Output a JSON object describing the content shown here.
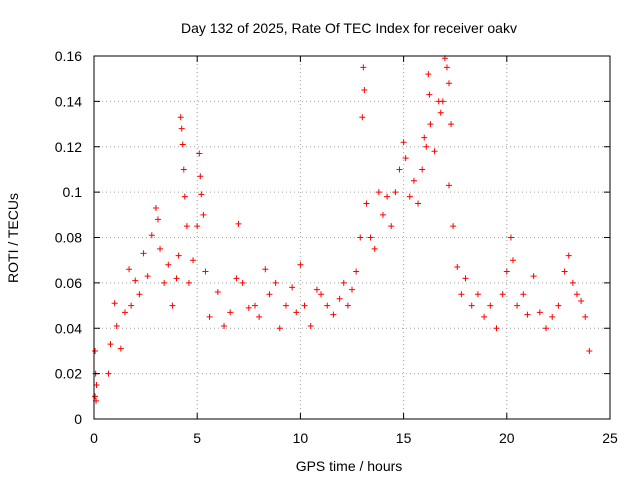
{
  "chart_data": {
    "type": "scatter",
    "title": "Day 132 of 2025, Rate Of TEC Index for receiver oakv",
    "xlabel": "GPS time / hours",
    "ylabel": "ROTI / TECUs",
    "xlim": [
      0,
      25
    ],
    "ylim": [
      0,
      0.16
    ],
    "x_ticks": [
      "0",
      "5",
      "10",
      "15",
      "20",
      "25"
    ],
    "y_ticks": [
      "0",
      "0.02",
      "0.04",
      "0.06",
      "0.08",
      "0.1",
      "0.12",
      "0.14",
      "0.16"
    ],
    "x_tick_values": [
      0,
      5,
      10,
      15,
      20,
      25
    ],
    "y_tick_values": [
      0,
      0.02,
      0.04,
      0.06,
      0.08,
      0.1,
      0.12,
      0.14,
      0.16
    ],
    "grid": true,
    "marker": "+",
    "color": "#ff0000",
    "series": [
      {
        "points": [
          [
            0.05,
            0.01
          ],
          [
            0.05,
            0.03
          ],
          [
            0.08,
            0.02
          ],
          [
            0.1,
            0.008
          ],
          [
            0.12,
            0.015
          ],
          [
            0.7,
            0.02
          ],
          [
            0.8,
            0.033
          ],
          [
            1.0,
            0.051
          ],
          [
            1.1,
            0.041
          ],
          [
            1.3,
            0.031
          ],
          [
            1.5,
            0.047
          ],
          [
            1.7,
            0.066
          ],
          [
            1.8,
            0.05
          ],
          [
            2.0,
            0.061
          ],
          [
            2.2,
            0.055
          ],
          [
            2.4,
            0.073
          ],
          [
            2.6,
            0.063
          ],
          [
            2.8,
            0.081
          ],
          [
            3.0,
            0.093
          ],
          [
            3.1,
            0.088
          ],
          [
            3.2,
            0.075
          ],
          [
            3.4,
            0.06
          ],
          [
            3.6,
            0.068
          ],
          [
            3.8,
            0.05
          ],
          [
            4.0,
            0.062
          ],
          [
            4.1,
            0.072
          ],
          [
            4.2,
            0.133
          ],
          [
            4.25,
            0.128
          ],
          [
            4.3,
            0.121
          ],
          [
            4.35,
            0.11
          ],
          [
            4.4,
            0.098
          ],
          [
            4.5,
            0.085
          ],
          [
            4.6,
            0.06
          ],
          [
            4.8,
            0.07
          ],
          [
            5.0,
            0.085
          ],
          [
            5.1,
            0.117
          ],
          [
            5.15,
            0.107
          ],
          [
            5.2,
            0.099
          ],
          [
            5.3,
            0.09
          ],
          [
            5.4,
            0.065
          ],
          [
            5.6,
            0.045
          ],
          [
            6.0,
            0.056
          ],
          [
            6.3,
            0.041
          ],
          [
            6.6,
            0.047
          ],
          [
            6.9,
            0.062
          ],
          [
            7.0,
            0.086
          ],
          [
            7.2,
            0.06
          ],
          [
            7.5,
            0.049
          ],
          [
            7.8,
            0.05
          ],
          [
            8.0,
            0.045
          ],
          [
            8.3,
            0.066
          ],
          [
            8.5,
            0.055
          ],
          [
            8.8,
            0.06
          ],
          [
            9.0,
            0.04
          ],
          [
            9.3,
            0.05
          ],
          [
            9.6,
            0.058
          ],
          [
            9.8,
            0.047
          ],
          [
            10.0,
            0.068
          ],
          [
            10.2,
            0.05
          ],
          [
            10.5,
            0.041
          ],
          [
            10.8,
            0.057
          ],
          [
            11.0,
            0.055
          ],
          [
            11.3,
            0.05
          ],
          [
            11.6,
            0.046
          ],
          [
            11.9,
            0.053
          ],
          [
            12.1,
            0.06
          ],
          [
            12.3,
            0.05
          ],
          [
            12.5,
            0.057
          ],
          [
            12.7,
            0.065
          ],
          [
            12.9,
            0.08
          ],
          [
            13.0,
            0.133
          ],
          [
            13.05,
            0.155
          ],
          [
            13.1,
            0.145
          ],
          [
            13.2,
            0.095
          ],
          [
            13.4,
            0.08
          ],
          [
            13.6,
            0.075
          ],
          [
            13.8,
            0.1
          ],
          [
            14.0,
            0.09
          ],
          [
            14.2,
            0.098
          ],
          [
            14.4,
            0.085
          ],
          [
            14.6,
            0.1
          ],
          [
            14.8,
            0.11
          ],
          [
            15.0,
            0.122
          ],
          [
            15.1,
            0.115
          ],
          [
            15.3,
            0.098
          ],
          [
            15.5,
            0.105
          ],
          [
            15.7,
            0.095
          ],
          [
            15.9,
            0.11
          ],
          [
            16.0,
            0.124
          ],
          [
            16.1,
            0.12
          ],
          [
            16.2,
            0.152
          ],
          [
            16.25,
            0.143
          ],
          [
            16.3,
            0.13
          ],
          [
            16.5,
            0.118
          ],
          [
            16.7,
            0.14
          ],
          [
            16.8,
            0.135
          ],
          [
            16.9,
            0.14
          ],
          [
            17.0,
            0.159
          ],
          [
            17.1,
            0.155
          ],
          [
            17.2,
            0.148
          ],
          [
            17.3,
            0.13
          ],
          [
            17.2,
            0.103
          ],
          [
            17.4,
            0.085
          ],
          [
            17.6,
            0.067
          ],
          [
            17.8,
            0.055
          ],
          [
            18.0,
            0.062
          ],
          [
            18.3,
            0.05
          ],
          [
            18.6,
            0.055
          ],
          [
            18.9,
            0.045
          ],
          [
            19.2,
            0.05
          ],
          [
            19.5,
            0.04
          ],
          [
            19.8,
            0.055
          ],
          [
            20.0,
            0.065
          ],
          [
            20.2,
            0.08
          ],
          [
            20.3,
            0.07
          ],
          [
            20.5,
            0.05
          ],
          [
            20.8,
            0.055
          ],
          [
            21.0,
            0.046
          ],
          [
            21.3,
            0.063
          ],
          [
            21.6,
            0.047
          ],
          [
            21.9,
            0.04
          ],
          [
            22.2,
            0.045
          ],
          [
            22.5,
            0.05
          ],
          [
            22.8,
            0.065
          ],
          [
            23.0,
            0.072
          ],
          [
            23.2,
            0.06
          ],
          [
            23.4,
            0.055
          ],
          [
            23.6,
            0.052
          ],
          [
            23.8,
            0.045
          ],
          [
            24.0,
            0.03
          ]
        ]
      }
    ]
  }
}
